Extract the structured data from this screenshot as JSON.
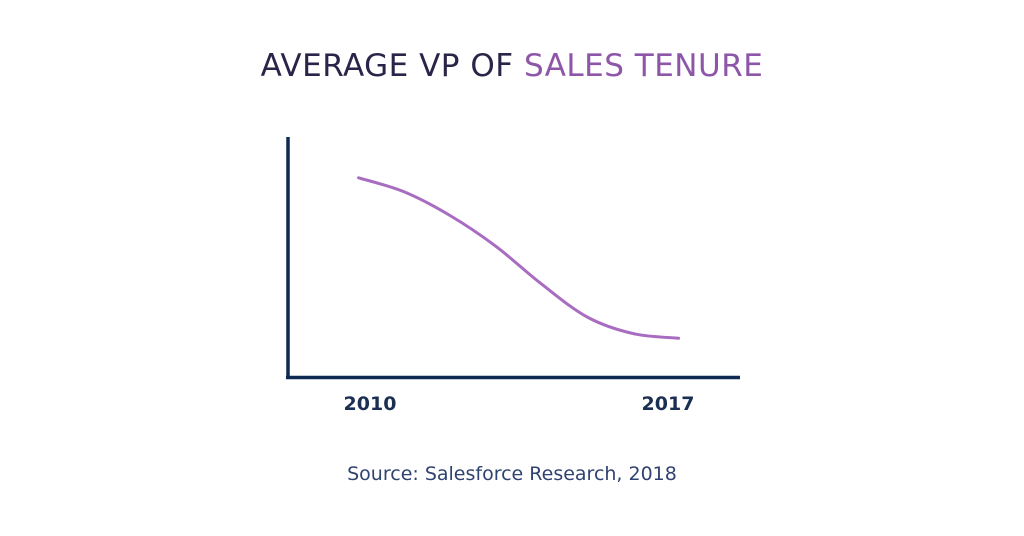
{
  "title": {
    "part1": "AVERAGE VP OF ",
    "part2": "SALES TENURE"
  },
  "source": "Source: Salesforce Research, 2018",
  "colors": {
    "title_dark": "#2b2348",
    "title_accent": "#8d56a8",
    "axis": "#0f2a52",
    "line": "#a86cc1",
    "tick_text": "#1b2f52",
    "source_text": "#2f4370"
  },
  "chart_data": {
    "type": "line",
    "title": "AVERAGE VP OF SALES TENURE",
    "xlabel": "",
    "ylabel": "",
    "x_tick_labels": [
      "2010",
      "2017"
    ],
    "series": [
      {
        "values": [
          {
            "x": 2010,
            "y": 0.84
          },
          {
            "x": 2011,
            "y": 0.78
          },
          {
            "x": 2012,
            "y": 0.68
          },
          {
            "x": 2013,
            "y": 0.55
          },
          {
            "x": 2014,
            "y": 0.39
          },
          {
            "x": 2015,
            "y": 0.25
          },
          {
            "x": 2016,
            "y": 0.18
          },
          {
            "x": 2017,
            "y": 0.16
          }
        ]
      }
    ],
    "xlim": [
      2008.5,
      2018.3
    ],
    "ylim": [
      0,
      1
    ],
    "y_ticks_shown": false,
    "grid": false,
    "legend": "none"
  }
}
